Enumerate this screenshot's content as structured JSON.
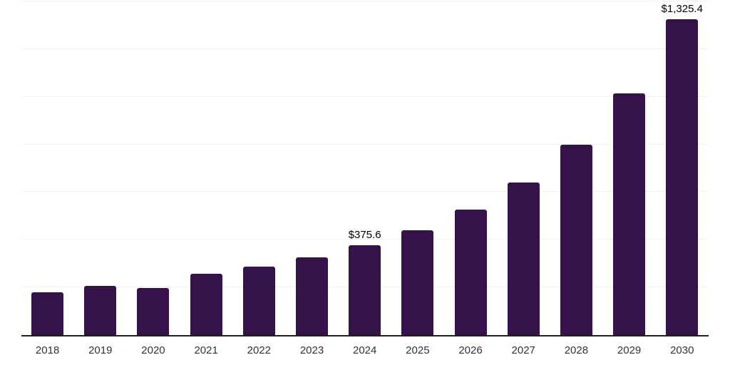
{
  "chart_data": {
    "type": "bar",
    "title": "",
    "xlabel": "",
    "ylabel": "",
    "ylim": [
      0,
      1400
    ],
    "gridline_interval": 200,
    "gridlines_visible": true,
    "legend": "none",
    "y_axis_tick_labels_visible": false,
    "colors": {
      "bar": "#36124b",
      "gridline": "#f0f0f0",
      "axis_line": "#1f1f1f",
      "x_tick_label": "#333333",
      "data_label": "#000000",
      "background": "#ffffff"
    },
    "categories": [
      "2018",
      "2019",
      "2020",
      "2021",
      "2022",
      "2023",
      "2024",
      "2025",
      "2026",
      "2027",
      "2028",
      "2029",
      "2030"
    ],
    "values": [
      180,
      207,
      197,
      256,
      286,
      327,
      375.6,
      439,
      527,
      640,
      798,
      1014,
      1325.4
    ],
    "data_labels": [
      null,
      null,
      null,
      null,
      null,
      null,
      "$375.6",
      null,
      null,
      null,
      null,
      null,
      "$1,325.4"
    ]
  }
}
